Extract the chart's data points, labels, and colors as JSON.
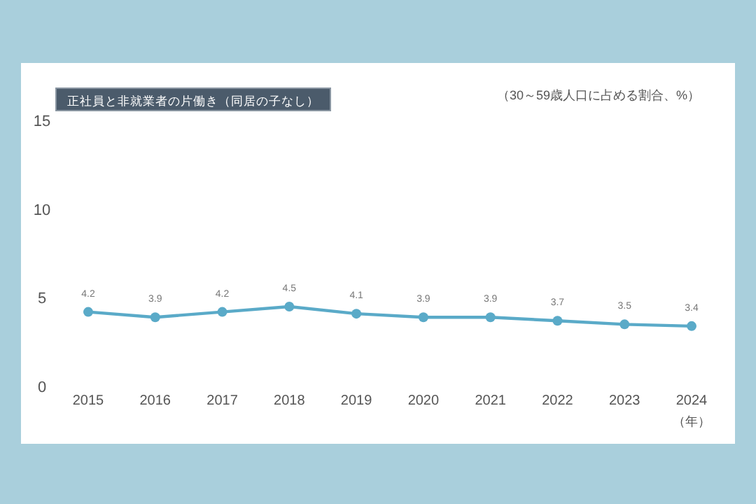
{
  "chart_data": {
    "type": "line",
    "title": "正社員と非就業者の片働き（同居の子なし）",
    "ylabel": "（30～59歳人口に占める割合、%）",
    "xlabel": "（年）",
    "categories": [
      "2015",
      "2016",
      "2017",
      "2018",
      "2019",
      "2020",
      "2021",
      "2022",
      "2023",
      "2024"
    ],
    "series": [
      {
        "color": "#5aaac8",
        "values": [
          4.2,
          3.9,
          4.2,
          4.5,
          4.1,
          3.9,
          3.9,
          3.7,
          3.5,
          3.4
        ]
      }
    ],
    "ylim": [
      0,
      15
    ],
    "yticks": [
      0,
      5,
      10,
      15
    ],
    "data_labels": true,
    "marker": "circle",
    "line_style": "solid",
    "grid": false
  }
}
